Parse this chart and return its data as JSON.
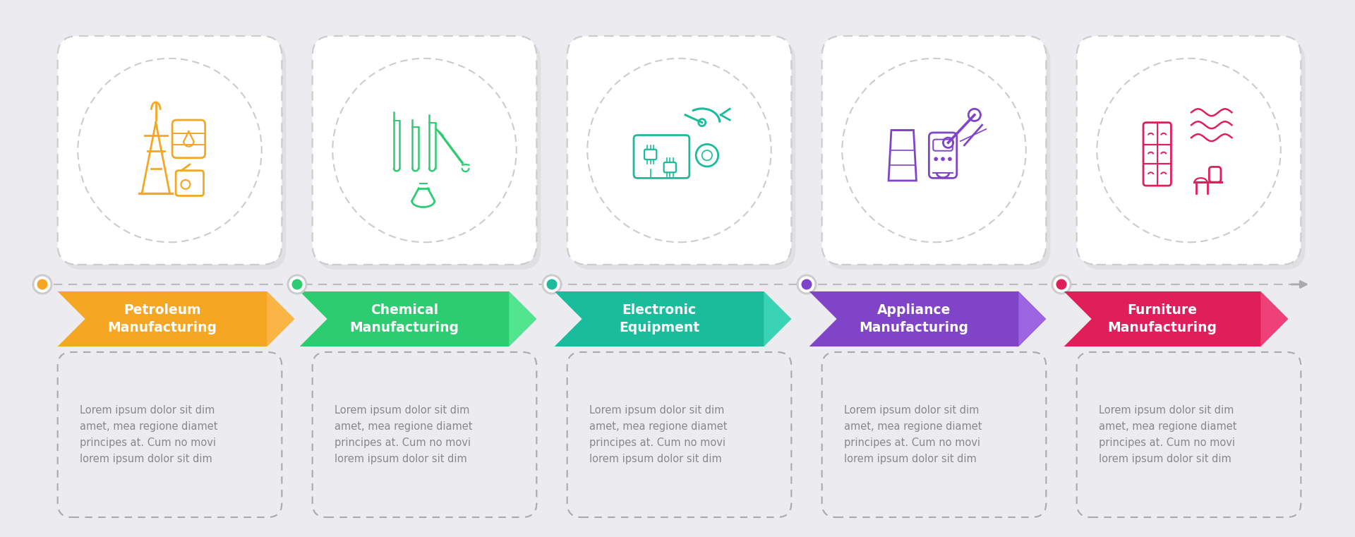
{
  "background_color": "#ebebf0",
  "steps": [
    {
      "title": "Petroleum\nManufacturing",
      "color": "#f5a623",
      "gradient_color": "#e8941a",
      "dot_color": "#f5a623",
      "icon_color": "#f5a623"
    },
    {
      "title": "Chemical\nManufacturing",
      "color": "#2ecc71",
      "gradient_color": "#25b862",
      "dot_color": "#2ecc71",
      "icon_color": "#2ecc71"
    },
    {
      "title": "Electronic\nEquipment",
      "color": "#1abc9c",
      "gradient_color": "#16a88b",
      "dot_color": "#1abc9c",
      "icon_color": "#1abc9c"
    },
    {
      "title": "Appliance\nManufacturing",
      "color": "#8044c8",
      "gradient_color": "#7038b8",
      "dot_color": "#8044c8",
      "icon_color": "#8044c8"
    },
    {
      "title": "Furniture\nManufacturing",
      "color": "#e01e5a",
      "gradient_color": "#cc1850",
      "dot_color": "#e01e5a",
      "icon_color": "#e01e5a"
    }
  ],
  "description": "Lorem ipsum dolor sit dim\namet, mea regione diamet\nprincipes at. Cum no movi\nlorem ipsum dolor sit dim",
  "text_color": "#888888",
  "title_color": "#ffffff",
  "card_border_color": "#cccccc",
  "desc_border_color": "#aaaaaa",
  "timeline_color": "#bbbbbb",
  "dot_ring_color": "#888888"
}
